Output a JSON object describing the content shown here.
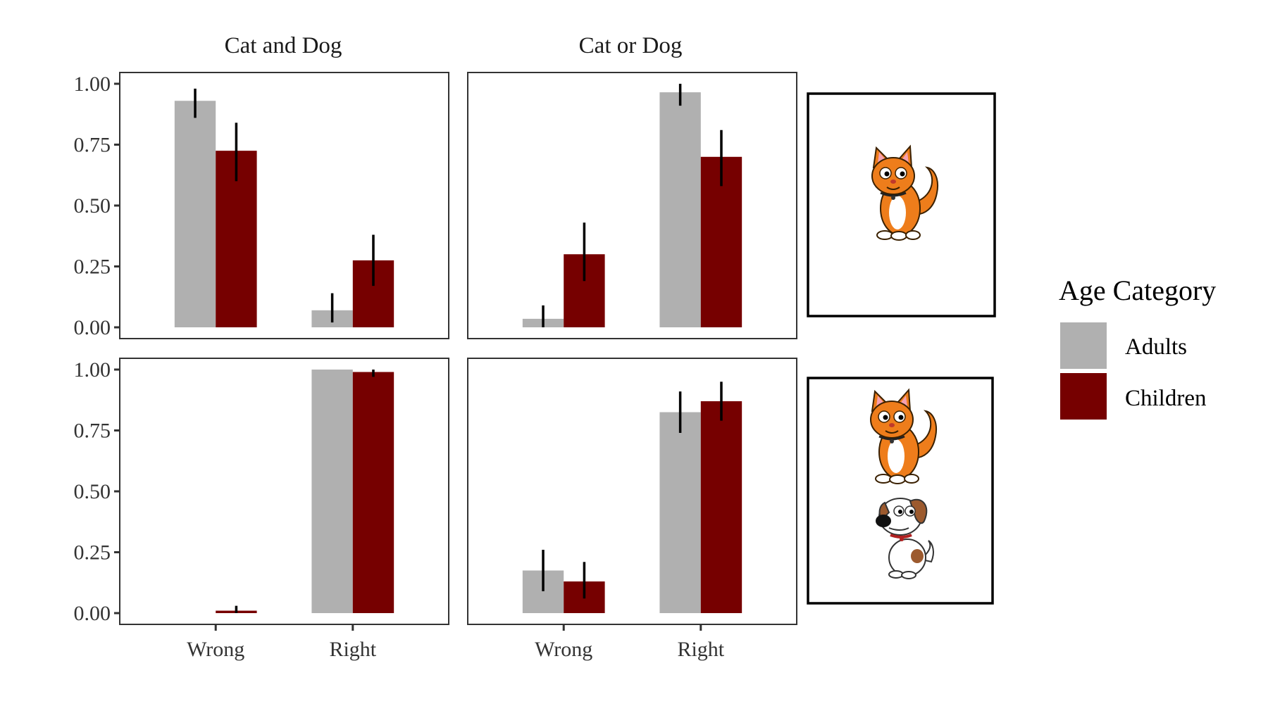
{
  "chart_data": {
    "type": "bar",
    "facet_columns": [
      "Cat and Dog",
      "Cat or Dog"
    ],
    "categories": [
      "Wrong",
      "Right"
    ],
    "y_ticks": [
      "0.00",
      "0.25",
      "0.50",
      "0.75",
      "1.00"
    ],
    "ylim": [
      0,
      1
    ],
    "legend": {
      "title": "Age Category",
      "position": "right",
      "entries": [
        {
          "name": "Adults",
          "color": "#b0b0b0"
        },
        {
          "name": "Children",
          "color": "#760000"
        }
      ]
    },
    "grid": false,
    "rows": [
      {
        "image_icons": [
          "cat-icon"
        ],
        "panels": [
          {
            "facet": "Cat and Dog",
            "series": [
              {
                "name": "Adults",
                "values": [
                  0.93,
                  0.07
                ],
                "err_low": [
                  0.86,
                  0.02
                ],
                "err_high": [
                  0.98,
                  0.14
                ]
              },
              {
                "name": "Children",
                "values": [
                  0.725,
                  0.275
                ],
                "err_low": [
                  0.6,
                  0.17
                ],
                "err_high": [
                  0.84,
                  0.38
                ]
              }
            ]
          },
          {
            "facet": "Cat or Dog",
            "series": [
              {
                "name": "Adults",
                "values": [
                  0.035,
                  0.965
                ],
                "err_low": [
                  0.0,
                  0.91
                ],
                "err_high": [
                  0.09,
                  1.0
                ]
              },
              {
                "name": "Children",
                "values": [
                  0.3,
                  0.7
                ],
                "err_low": [
                  0.19,
                  0.58
                ],
                "err_high": [
                  0.43,
                  0.81
                ]
              }
            ]
          }
        ]
      },
      {
        "image_icons": [
          "cat-icon",
          "dog-icon"
        ],
        "panels": [
          {
            "facet": "Cat and Dog",
            "series": [
              {
                "name": "Adults",
                "values": [
                  0.0,
                  1.0
                ],
                "err_low": [
                  0.0,
                  1.0
                ],
                "err_high": [
                  0.0,
                  1.0
                ]
              },
              {
                "name": "Children",
                "values": [
                  0.01,
                  0.99
                ],
                "err_low": [
                  0.0,
                  0.97
                ],
                "err_high": [
                  0.03,
                  1.0
                ]
              }
            ]
          },
          {
            "facet": "Cat or Dog",
            "series": [
              {
                "name": "Adults",
                "values": [
                  0.175,
                  0.825
                ],
                "err_low": [
                  0.09,
                  0.74
                ],
                "err_high": [
                  0.26,
                  0.91
                ]
              },
              {
                "name": "Children",
                "values": [
                  0.13,
                  0.87
                ],
                "err_low": [
                  0.06,
                  0.79
                ],
                "err_high": [
                  0.21,
                  0.95
                ]
              }
            ]
          }
        ]
      }
    ]
  }
}
